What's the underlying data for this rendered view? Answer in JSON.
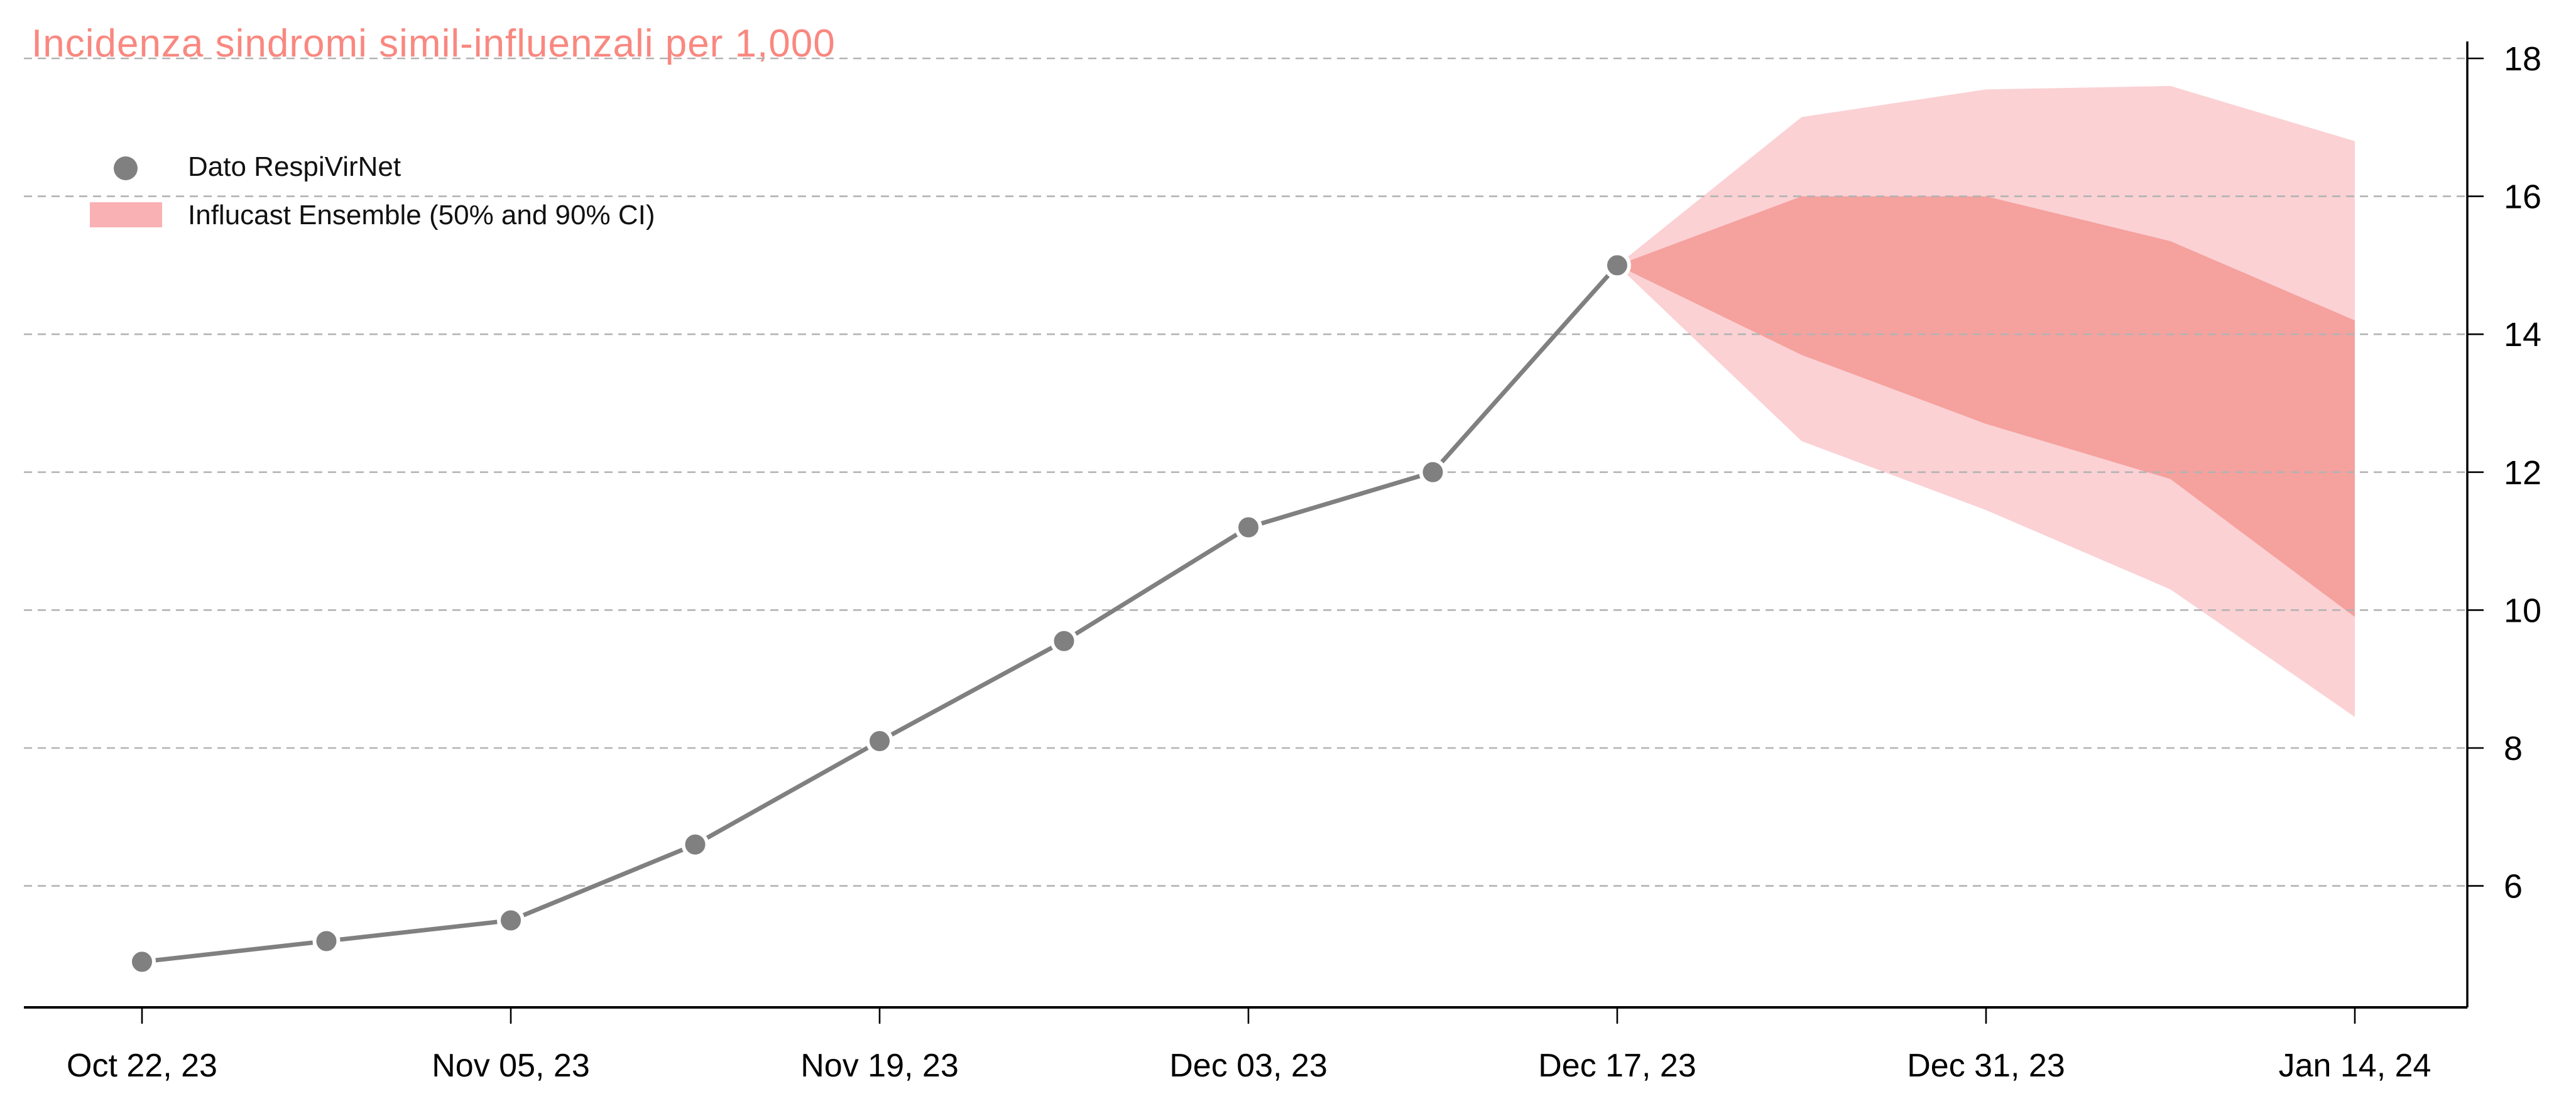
{
  "chart_data": {
    "type": "line+area",
    "title": "Incidenza sindromi simil-influenzali per 1,000",
    "legend_position": "top-left",
    "legend": [
      {
        "label": "Dato RespiVirNet",
        "marker": "dot"
      },
      {
        "label": "Influcast Ensemble (50% and 90% CI)",
        "marker": "band"
      }
    ],
    "x_tick_labels": [
      "Oct 22, 23",
      "Nov 05, 23",
      "Nov 19, 23",
      "Dec 03, 23",
      "Dec 17, 23",
      "Dec 31, 23",
      "Jan 14, 24"
    ],
    "x_tick_week_index": [
      0,
      2,
      4,
      6,
      8,
      10,
      12
    ],
    "y_ticks": [
      18,
      16,
      14,
      12,
      10,
      8,
      6
    ],
    "y_range": [
      4.3,
      18.25
    ],
    "grid": "horizontal-dashed",
    "y_axis_side": "right",
    "observed": {
      "dates": [
        "Oct 22, 23",
        "Oct 29, 23",
        "Nov 05, 23",
        "Nov 12, 23",
        "Nov 19, 23",
        "Nov 26, 23",
        "Dec 03, 23",
        "Dec 10, 23",
        "Dec 17, 23"
      ],
      "week_index": [
        0,
        1,
        2,
        3,
        4,
        5,
        6,
        7,
        8
      ],
      "values": [
        4.9,
        5.2,
        5.5,
        6.6,
        8.1,
        9.55,
        11.2,
        12.0,
        15.0
      ]
    },
    "forecast": {
      "dates": [
        "Dec 17, 23",
        "Dec 24, 23",
        "Dec 31, 23",
        "Jan 07, 24",
        "Jan 14, 24"
      ],
      "week_index": [
        8,
        9,
        10,
        11,
        12
      ],
      "q05": [
        15.0,
        12.45,
        11.45,
        10.3,
        8.45
      ],
      "q25": [
        15.0,
        13.7,
        12.7,
        11.9,
        9.9
      ],
      "q75": [
        15.0,
        16.0,
        16.0,
        15.35,
        14.2
      ],
      "q95": [
        15.0,
        17.15,
        17.55,
        17.6,
        16.8
      ]
    },
    "colors": {
      "title": "#f98880",
      "band_90": "#fbd1d4",
      "band_50": "#f5a19d",
      "legend_swatch": "#f9b1b4",
      "series": "#808080",
      "marker_outline": "#ffffff",
      "axis": "#000000",
      "gridline": "#b3b3b3",
      "tick_label": "#000000"
    }
  }
}
